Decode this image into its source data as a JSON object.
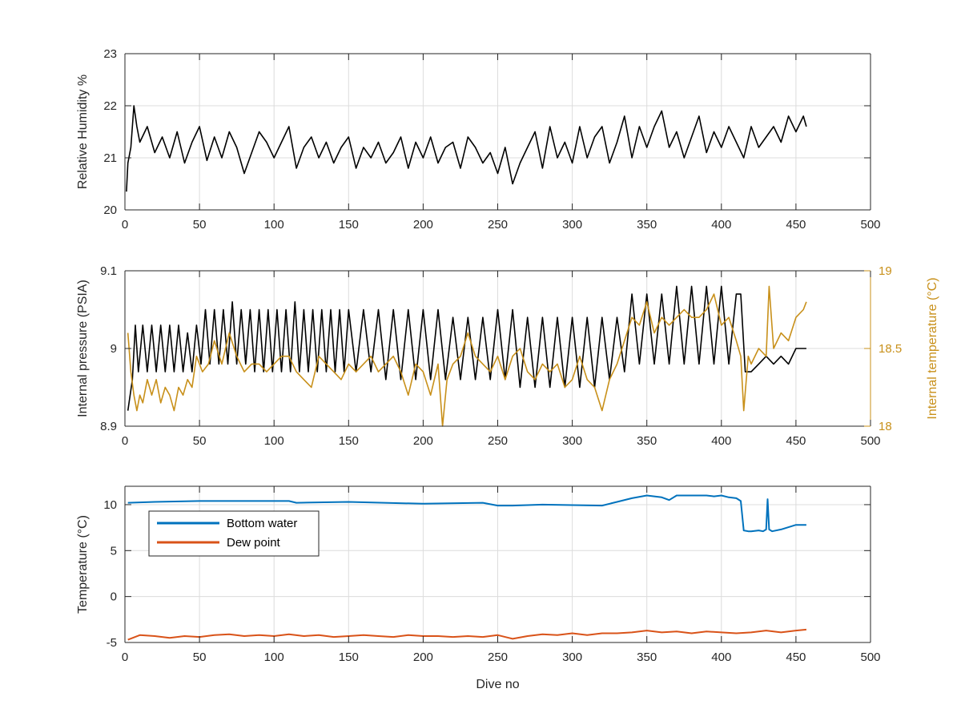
{
  "chart_data": [
    {
      "type": "line",
      "xlabel": "",
      "ylabel": "Relative Humidity %",
      "xlim": [
        0,
        500
      ],
      "ylim": [
        20,
        23
      ],
      "xticks": [
        0,
        50,
        100,
        150,
        200,
        250,
        300,
        350,
        400,
        450,
        500
      ],
      "yticks": [
        20,
        21,
        22,
        23
      ],
      "grid": true,
      "series": [
        {
          "color": "#000000",
          "sampled": true,
          "x": [
            1,
            2,
            4,
            6,
            8,
            10,
            15,
            20,
            25,
            30,
            35,
            40,
            45,
            50,
            55,
            60,
            65,
            70,
            75,
            80,
            85,
            90,
            95,
            100,
            105,
            110,
            115,
            120,
            125,
            130,
            135,
            140,
            145,
            150,
            155,
            160,
            165,
            170,
            175,
            180,
            185,
            190,
            195,
            200,
            205,
            210,
            215,
            220,
            225,
            230,
            235,
            240,
            245,
            250,
            255,
            260,
            265,
            270,
            275,
            280,
            285,
            290,
            295,
            300,
            305,
            310,
            315,
            320,
            325,
            330,
            335,
            340,
            345,
            350,
            355,
            360,
            365,
            370,
            375,
            380,
            385,
            390,
            395,
            400,
            405,
            410,
            415,
            420,
            425,
            430,
            435,
            440,
            445,
            450,
            455,
            457
          ],
          "y": [
            20.35,
            20.9,
            21.2,
            22.0,
            21.6,
            21.3,
            21.6,
            21.1,
            21.4,
            21.0,
            21.5,
            20.9,
            21.3,
            21.6,
            20.95,
            21.4,
            21.0,
            21.5,
            21.2,
            20.7,
            21.1,
            21.5,
            21.3,
            21.0,
            21.3,
            21.6,
            20.8,
            21.2,
            21.4,
            21.0,
            21.3,
            20.9,
            21.2,
            21.4,
            20.8,
            21.2,
            21.0,
            21.3,
            20.9,
            21.1,
            21.4,
            20.8,
            21.3,
            21.0,
            21.4,
            20.9,
            21.2,
            21.3,
            20.8,
            21.4,
            21.2,
            20.9,
            21.1,
            20.7,
            21.2,
            20.5,
            20.9,
            21.2,
            21.5,
            20.8,
            21.6,
            21.0,
            21.3,
            20.9,
            21.6,
            21.0,
            21.4,
            21.6,
            20.9,
            21.3,
            21.8,
            21.0,
            21.6,
            21.2,
            21.6,
            21.9,
            21.2,
            21.5,
            21.0,
            21.4,
            21.8,
            21.1,
            21.5,
            21.2,
            21.6,
            21.3,
            21.0,
            21.6,
            21.2,
            21.4,
            21.6,
            21.3,
            21.8,
            21.5,
            21.8,
            21.6
          ]
        }
      ]
    },
    {
      "type": "line",
      "xlabel": "",
      "ylabel": "Internal pressure (PSIA)",
      "y2label": "Internal temperature (°C)",
      "xlim": [
        0,
        500
      ],
      "ylim": [
        8.9,
        9.1
      ],
      "y2lim": [
        18,
        19
      ],
      "xticks": [
        0,
        50,
        100,
        150,
        200,
        250,
        300,
        350,
        400,
        450,
        500
      ],
      "yticks": [
        8.9,
        9,
        9.1
      ],
      "y2ticks": [
        18,
        18.5,
        19
      ],
      "grid": true,
      "series": [
        {
          "axis": "left",
          "color": "#000000",
          "sampled": true,
          "x": [
            2,
            5,
            7,
            9,
            12,
            15,
            18,
            21,
            24,
            27,
            30,
            33,
            36,
            39,
            42,
            45,
            48,
            51,
            54,
            57,
            60,
            63,
            66,
            69,
            72,
            75,
            78,
            81,
            84,
            87,
            90,
            93,
            96,
            99,
            102,
            105,
            108,
            111,
            114,
            117,
            120,
            123,
            126,
            129,
            132,
            135,
            138,
            141,
            144,
            147,
            150,
            155,
            160,
            165,
            170,
            175,
            180,
            185,
            190,
            195,
            200,
            205,
            210,
            215,
            220,
            225,
            230,
            235,
            240,
            245,
            250,
            255,
            260,
            265,
            270,
            275,
            280,
            285,
            290,
            295,
            300,
            305,
            310,
            315,
            320,
            325,
            330,
            335,
            340,
            345,
            350,
            355,
            360,
            365,
            370,
            375,
            380,
            385,
            390,
            395,
            400,
            405,
            410,
            413,
            416,
            420,
            425,
            430,
            435,
            440,
            445,
            450,
            457
          ],
          "y": [
            8.92,
            8.96,
            9.03,
            8.97,
            9.03,
            8.97,
            9.03,
            8.97,
            9.03,
            8.97,
            9.03,
            8.97,
            9.03,
            8.97,
            9.02,
            8.97,
            9.03,
            8.98,
            9.05,
            8.98,
            9.05,
            8.98,
            9.05,
            8.98,
            9.06,
            8.98,
            9.05,
            8.98,
            9.05,
            8.97,
            9.05,
            8.97,
            9.05,
            8.97,
            9.05,
            8.97,
            9.05,
            8.97,
            9.06,
            8.97,
            9.05,
            8.97,
            9.05,
            8.97,
            9.05,
            8.97,
            9.05,
            8.97,
            9.05,
            8.97,
            9.05,
            8.97,
            9.05,
            8.97,
            9.05,
            8.96,
            9.05,
            8.96,
            9.05,
            8.96,
            9.05,
            8.96,
            9.05,
            8.96,
            9.04,
            8.96,
            9.04,
            8.96,
            9.04,
            8.96,
            9.05,
            8.96,
            9.05,
            8.95,
            9.04,
            8.95,
            9.04,
            8.95,
            9.04,
            8.95,
            9.04,
            8.95,
            9.04,
            8.95,
            9.04,
            8.96,
            9.04,
            8.97,
            9.07,
            8.98,
            9.07,
            8.98,
            9.07,
            8.98,
            9.08,
            8.98,
            9.08,
            8.98,
            9.08,
            8.98,
            9.08,
            8.98,
            9.07,
            9.07,
            8.97,
            8.97,
            8.98,
            8.99,
            8.98,
            8.99,
            8.98,
            9.0,
            9.0
          ]
        },
        {
          "axis": "right",
          "color": "#C8901A",
          "sampled": true,
          "x": [
            2,
            4,
            6,
            8,
            10,
            12,
            15,
            18,
            21,
            24,
            27,
            30,
            33,
            36,
            39,
            42,
            45,
            48,
            52,
            56,
            60,
            65,
            70,
            75,
            80,
            85,
            90,
            95,
            100,
            105,
            110,
            115,
            120,
            125,
            130,
            135,
            140,
            145,
            150,
            155,
            160,
            165,
            170,
            175,
            180,
            185,
            190,
            195,
            200,
            205,
            210,
            213,
            216,
            220,
            225,
            230,
            235,
            240,
            245,
            250,
            255,
            260,
            265,
            270,
            275,
            280,
            285,
            290,
            295,
            300,
            305,
            310,
            315,
            320,
            325,
            330,
            335,
            340,
            345,
            350,
            355,
            360,
            365,
            370,
            375,
            380,
            385,
            390,
            395,
            400,
            405,
            410,
            413,
            415,
            418,
            420,
            425,
            430,
            432,
            435,
            440,
            445,
            450,
            455,
            457
          ],
          "y": [
            18.6,
            18.35,
            18.2,
            18.1,
            18.2,
            18.15,
            18.3,
            18.2,
            18.3,
            18.15,
            18.25,
            18.2,
            18.1,
            18.25,
            18.2,
            18.3,
            18.25,
            18.45,
            18.35,
            18.4,
            18.55,
            18.4,
            18.6,
            18.45,
            18.35,
            18.4,
            18.4,
            18.35,
            18.4,
            18.45,
            18.45,
            18.35,
            18.3,
            18.25,
            18.45,
            18.4,
            18.35,
            18.3,
            18.4,
            18.35,
            18.4,
            18.45,
            18.35,
            18.4,
            18.45,
            18.35,
            18.2,
            18.4,
            18.35,
            18.2,
            18.4,
            18.0,
            18.3,
            18.4,
            18.45,
            18.6,
            18.45,
            18.4,
            18.35,
            18.45,
            18.3,
            18.45,
            18.5,
            18.35,
            18.3,
            18.4,
            18.35,
            18.4,
            18.25,
            18.3,
            18.45,
            18.3,
            18.25,
            18.1,
            18.3,
            18.4,
            18.55,
            18.7,
            18.65,
            18.8,
            18.6,
            18.7,
            18.65,
            18.7,
            18.75,
            18.7,
            18.7,
            18.75,
            18.85,
            18.65,
            18.7,
            18.55,
            18.45,
            18.1,
            18.45,
            18.4,
            18.5,
            18.45,
            18.9,
            18.5,
            18.6,
            18.55,
            18.7,
            18.75,
            18.8
          ]
        }
      ]
    },
    {
      "type": "line",
      "xlabel": "Dive no",
      "ylabel": "Temperature (°C)",
      "xlim": [
        0,
        500
      ],
      "ylim": [
        -5,
        12
      ],
      "xticks": [
        0,
        50,
        100,
        150,
        200,
        250,
        300,
        350,
        400,
        450,
        500
      ],
      "yticks": [
        -5,
        0,
        5,
        10
      ],
      "grid": true,
      "legend": "top-left",
      "series": [
        {
          "name": "Bottom water",
          "color": "#0072BD",
          "sampled": true,
          "x": [
            2,
            20,
            50,
            80,
            100,
            110,
            115,
            150,
            200,
            240,
            250,
            260,
            280,
            320,
            330,
            340,
            350,
            360,
            365,
            370,
            380,
            390,
            395,
            400,
            405,
            410,
            413,
            415,
            418,
            420,
            425,
            428,
            430,
            431,
            432,
            434,
            440,
            450,
            457
          ],
          "y": [
            10.2,
            10.3,
            10.4,
            10.4,
            10.4,
            10.4,
            10.2,
            10.3,
            10.1,
            10.2,
            9.9,
            9.9,
            10.0,
            9.9,
            10.3,
            10.7,
            11.0,
            10.8,
            10.5,
            11.0,
            11.0,
            11.0,
            10.9,
            11.0,
            10.8,
            10.7,
            10.4,
            7.2,
            7.1,
            7.1,
            7.2,
            7.1,
            7.3,
            10.6,
            7.3,
            7.1,
            7.3,
            7.8,
            7.8
          ]
        },
        {
          "name": "Dew point",
          "color": "#D95319",
          "sampled": true,
          "x": [
            2,
            10,
            20,
            30,
            40,
            50,
            60,
            70,
            80,
            90,
            100,
            110,
            120,
            130,
            140,
            150,
            160,
            170,
            180,
            190,
            200,
            210,
            220,
            230,
            240,
            250,
            260,
            270,
            280,
            290,
            300,
            310,
            320,
            330,
            340,
            350,
            360,
            370,
            380,
            390,
            400,
            410,
            420,
            430,
            440,
            450,
            457
          ],
          "y": [
            -4.7,
            -4.2,
            -4.3,
            -4.5,
            -4.3,
            -4.4,
            -4.2,
            -4.1,
            -4.3,
            -4.2,
            -4.3,
            -4.1,
            -4.3,
            -4.2,
            -4.4,
            -4.3,
            -4.2,
            -4.3,
            -4.4,
            -4.2,
            -4.3,
            -4.3,
            -4.4,
            -4.3,
            -4.4,
            -4.2,
            -4.6,
            -4.3,
            -4.1,
            -4.2,
            -4.0,
            -4.2,
            -4.0,
            -4.0,
            -3.9,
            -3.7,
            -3.9,
            -3.8,
            -4.0,
            -3.8,
            -3.9,
            -4.0,
            -3.9,
            -3.7,
            -3.9,
            -3.7,
            -3.6
          ]
        }
      ]
    }
  ]
}
